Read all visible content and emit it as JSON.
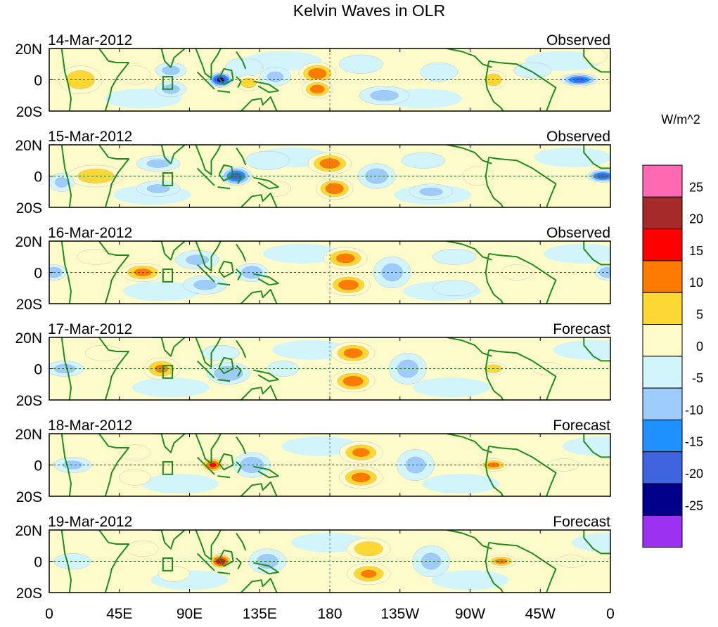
{
  "chart_data": {
    "type": "heatmap",
    "title": "Kelvin Waves in OLR",
    "units": "W/m^2",
    "x_tick_labels": [
      "0",
      "45E",
      "90E",
      "135E",
      "180",
      "135W",
      "90W",
      "45W",
      "0"
    ],
    "x_ticks_deg": [
      0,
      45,
      90,
      135,
      180,
      225,
      270,
      315,
      360
    ],
    "y_tick_labels": [
      "20N",
      "0",
      "20S"
    ],
    "lat_range": [
      -20,
      20
    ],
    "lon_range": [
      0,
      360
    ],
    "colorbar": {
      "labels": [
        "25",
        "20",
        "15",
        "10",
        "5",
        "0",
        "-5",
        "-10",
        "-15",
        "-20",
        "-25"
      ],
      "levels": [
        -25,
        -20,
        -15,
        -10,
        -5,
        0,
        5,
        10,
        15,
        20,
        25
      ],
      "colors": [
        "#9b30f0",
        "#00008b",
        "#3f64df",
        "#1e90ff",
        "#9dcbfa",
        "#d2f5fb",
        "#fdfbc9",
        "#fdd832",
        "#fd7b00",
        "#ff0000",
        "#a52a2a",
        "#ff69b4"
      ]
    },
    "panels": [
      {
        "date": "14-Mar-2012",
        "status": "Observed",
        "anomalies": [
          {
            "lon": 20,
            "lat": 0,
            "w": 14,
            "h": 9,
            "v": 12
          },
          {
            "lon": 55,
            "lat": 3,
            "w": 10,
            "h": 6,
            "v": 4
          },
          {
            "lon": 78,
            "lat": 6,
            "w": 10,
            "h": 5,
            "v": -9
          },
          {
            "lon": 78,
            "lat": -6,
            "w": 10,
            "h": 5,
            "v": -9
          },
          {
            "lon": 110,
            "lat": 0,
            "w": 8,
            "h": 5,
            "v": -26
          },
          {
            "lon": 125,
            "lat": 8,
            "w": 12,
            "h": 6,
            "v": -7
          },
          {
            "lon": 128,
            "lat": -2,
            "w": 8,
            "h": 5,
            "v": 11
          },
          {
            "lon": 145,
            "lat": 2,
            "w": 10,
            "h": 6,
            "v": -8
          },
          {
            "lon": 172,
            "lat": 4,
            "w": 12,
            "h": 7,
            "v": 17
          },
          {
            "lon": 172,
            "lat": -6,
            "w": 10,
            "h": 6,
            "v": 16
          },
          {
            "lon": 200,
            "lat": 10,
            "w": 14,
            "h": 6,
            "v": -7
          },
          {
            "lon": 215,
            "lat": -10,
            "w": 16,
            "h": 6,
            "v": -9
          },
          {
            "lon": 250,
            "lat": 5,
            "w": 12,
            "h": 6,
            "v": -6
          },
          {
            "lon": 285,
            "lat": 0,
            "w": 8,
            "h": 6,
            "v": 12
          },
          {
            "lon": 310,
            "lat": 6,
            "w": 12,
            "h": 5,
            "v": -5
          },
          {
            "lon": 340,
            "lat": 0,
            "w": 12,
            "h": 4,
            "v": -20
          },
          {
            "lon": 350,
            "lat": 15,
            "w": 8,
            "h": 5,
            "v": 5
          }
        ]
      },
      {
        "date": "15-Mar-2012",
        "status": "Observed",
        "anomalies": [
          {
            "lon": 30,
            "lat": 0,
            "w": 18,
            "h": 7,
            "v": 12
          },
          {
            "lon": 8,
            "lat": -4,
            "w": 8,
            "h": 6,
            "v": -8
          },
          {
            "lon": 70,
            "lat": 8,
            "w": 14,
            "h": 5,
            "v": -8
          },
          {
            "lon": 70,
            "lat": -8,
            "w": 14,
            "h": 5,
            "v": -8
          },
          {
            "lon": 120,
            "lat": 0,
            "w": 10,
            "h": 6,
            "v": -22
          },
          {
            "lon": 140,
            "lat": 10,
            "w": 14,
            "h": 6,
            "v": -7
          },
          {
            "lon": 145,
            "lat": -8,
            "w": 10,
            "h": 5,
            "v": 6
          },
          {
            "lon": 180,
            "lat": 8,
            "w": 14,
            "h": 7,
            "v": 16
          },
          {
            "lon": 183,
            "lat": -8,
            "w": 12,
            "h": 7,
            "v": 17
          },
          {
            "lon": 210,
            "lat": 0,
            "w": 12,
            "h": 8,
            "v": -10
          },
          {
            "lon": 240,
            "lat": 10,
            "w": 14,
            "h": 5,
            "v": -7
          },
          {
            "lon": 245,
            "lat": -10,
            "w": 14,
            "h": 5,
            "v": -8
          },
          {
            "lon": 275,
            "lat": 0,
            "w": 10,
            "h": 6,
            "v": 7
          },
          {
            "lon": 355,
            "lat": 0,
            "w": 10,
            "h": 4,
            "v": -22
          }
        ]
      },
      {
        "date": "16-Mar-2012",
        "status": "Observed",
        "anomalies": [
          {
            "lon": 3,
            "lat": 0,
            "w": 8,
            "h": 5,
            "v": -12
          },
          {
            "lon": 30,
            "lat": 10,
            "w": 12,
            "h": 5,
            "v": 6
          },
          {
            "lon": 60,
            "lat": 0,
            "w": 14,
            "h": 6,
            "v": 14
          },
          {
            "lon": 95,
            "lat": 8,
            "w": 14,
            "h": 6,
            "v": -8
          },
          {
            "lon": 100,
            "lat": -8,
            "w": 14,
            "h": 6,
            "v": -8
          },
          {
            "lon": 130,
            "lat": 0,
            "w": 10,
            "h": 6,
            "v": -12
          },
          {
            "lon": 190,
            "lat": 9,
            "w": 14,
            "h": 7,
            "v": 15
          },
          {
            "lon": 192,
            "lat": -8,
            "w": 14,
            "h": 7,
            "v": 16
          },
          {
            "lon": 220,
            "lat": 0,
            "w": 12,
            "h": 10,
            "v": -9
          },
          {
            "lon": 260,
            "lat": 10,
            "w": 14,
            "h": 5,
            "v": -6
          },
          {
            "lon": 260,
            "lat": -10,
            "w": 14,
            "h": 5,
            "v": -6
          },
          {
            "lon": 300,
            "lat": 0,
            "w": 10,
            "h": 5,
            "v": 5
          },
          {
            "lon": 358,
            "lat": 0,
            "w": 8,
            "h": 5,
            "v": -12
          }
        ]
      },
      {
        "date": "17-Mar-2012",
        "status": "Forecast",
        "anomalies": [
          {
            "lon": 10,
            "lat": 0,
            "w": 12,
            "h": 5,
            "v": -9
          },
          {
            "lon": 35,
            "lat": 10,
            "w": 12,
            "h": 5,
            "v": 5
          },
          {
            "lon": 72,
            "lat": 0,
            "w": 12,
            "h": 7,
            "v": 13
          },
          {
            "lon": 115,
            "lat": -3,
            "w": 14,
            "h": 7,
            "v": -12
          },
          {
            "lon": 110,
            "lat": 10,
            "w": 12,
            "h": 5,
            "v": -7
          },
          {
            "lon": 150,
            "lat": 0,
            "w": 10,
            "h": 5,
            "v": -7
          },
          {
            "lon": 195,
            "lat": 10,
            "w": 14,
            "h": 7,
            "v": 15
          },
          {
            "lon": 195,
            "lat": -8,
            "w": 14,
            "h": 7,
            "v": 16
          },
          {
            "lon": 230,
            "lat": 0,
            "w": 12,
            "h": 10,
            "v": -9
          },
          {
            "lon": 285,
            "lat": 0,
            "w": 8,
            "h": 4,
            "v": 12
          },
          {
            "lon": 320,
            "lat": 0,
            "w": 10,
            "h": 4,
            "v": 5
          }
        ]
      },
      {
        "date": "18-Mar-2012",
        "status": "Forecast",
        "anomalies": [
          {
            "lon": 15,
            "lat": 0,
            "w": 12,
            "h": 5,
            "v": -8
          },
          {
            "lon": 55,
            "lat": 8,
            "w": 10,
            "h": 5,
            "v": 5
          },
          {
            "lon": 55,
            "lat": -8,
            "w": 10,
            "h": 5,
            "v": 5
          },
          {
            "lon": 105,
            "lat": 0,
            "w": 8,
            "h": 5,
            "v": 18
          },
          {
            "lon": 130,
            "lat": 0,
            "w": 12,
            "h": 8,
            "v": -11
          },
          {
            "lon": 200,
            "lat": 8,
            "w": 14,
            "h": 7,
            "v": 14
          },
          {
            "lon": 200,
            "lat": -8,
            "w": 14,
            "h": 7,
            "v": 15
          },
          {
            "lon": 235,
            "lat": 0,
            "w": 12,
            "h": 10,
            "v": -8
          },
          {
            "lon": 285,
            "lat": 0,
            "w": 10,
            "h": 4,
            "v": 14
          },
          {
            "lon": 330,
            "lat": 0,
            "w": 10,
            "h": 4,
            "v": 6
          }
        ]
      },
      {
        "date": "19-Mar-2012",
        "status": "Forecast",
        "anomalies": [
          {
            "lon": 15,
            "lat": 0,
            "w": 12,
            "h": 5,
            "v": -7
          },
          {
            "lon": 60,
            "lat": 8,
            "w": 10,
            "h": 5,
            "v": 5
          },
          {
            "lon": 80,
            "lat": -8,
            "w": 10,
            "h": 5,
            "v": 5
          },
          {
            "lon": 110,
            "lat": 0,
            "w": 8,
            "h": 5,
            "v": 22
          },
          {
            "lon": 140,
            "lat": 0,
            "w": 12,
            "h": 8,
            "v": -9
          },
          {
            "lon": 205,
            "lat": 8,
            "w": 14,
            "h": 7,
            "v": 12
          },
          {
            "lon": 205,
            "lat": -8,
            "w": 14,
            "h": 7,
            "v": 13
          },
          {
            "lon": 245,
            "lat": 0,
            "w": 12,
            "h": 10,
            "v": -8
          },
          {
            "lon": 290,
            "lat": 0,
            "w": 10,
            "h": 4,
            "v": 14
          },
          {
            "lon": 335,
            "lat": 0,
            "w": 10,
            "h": 4,
            "v": 6
          }
        ]
      }
    ]
  }
}
